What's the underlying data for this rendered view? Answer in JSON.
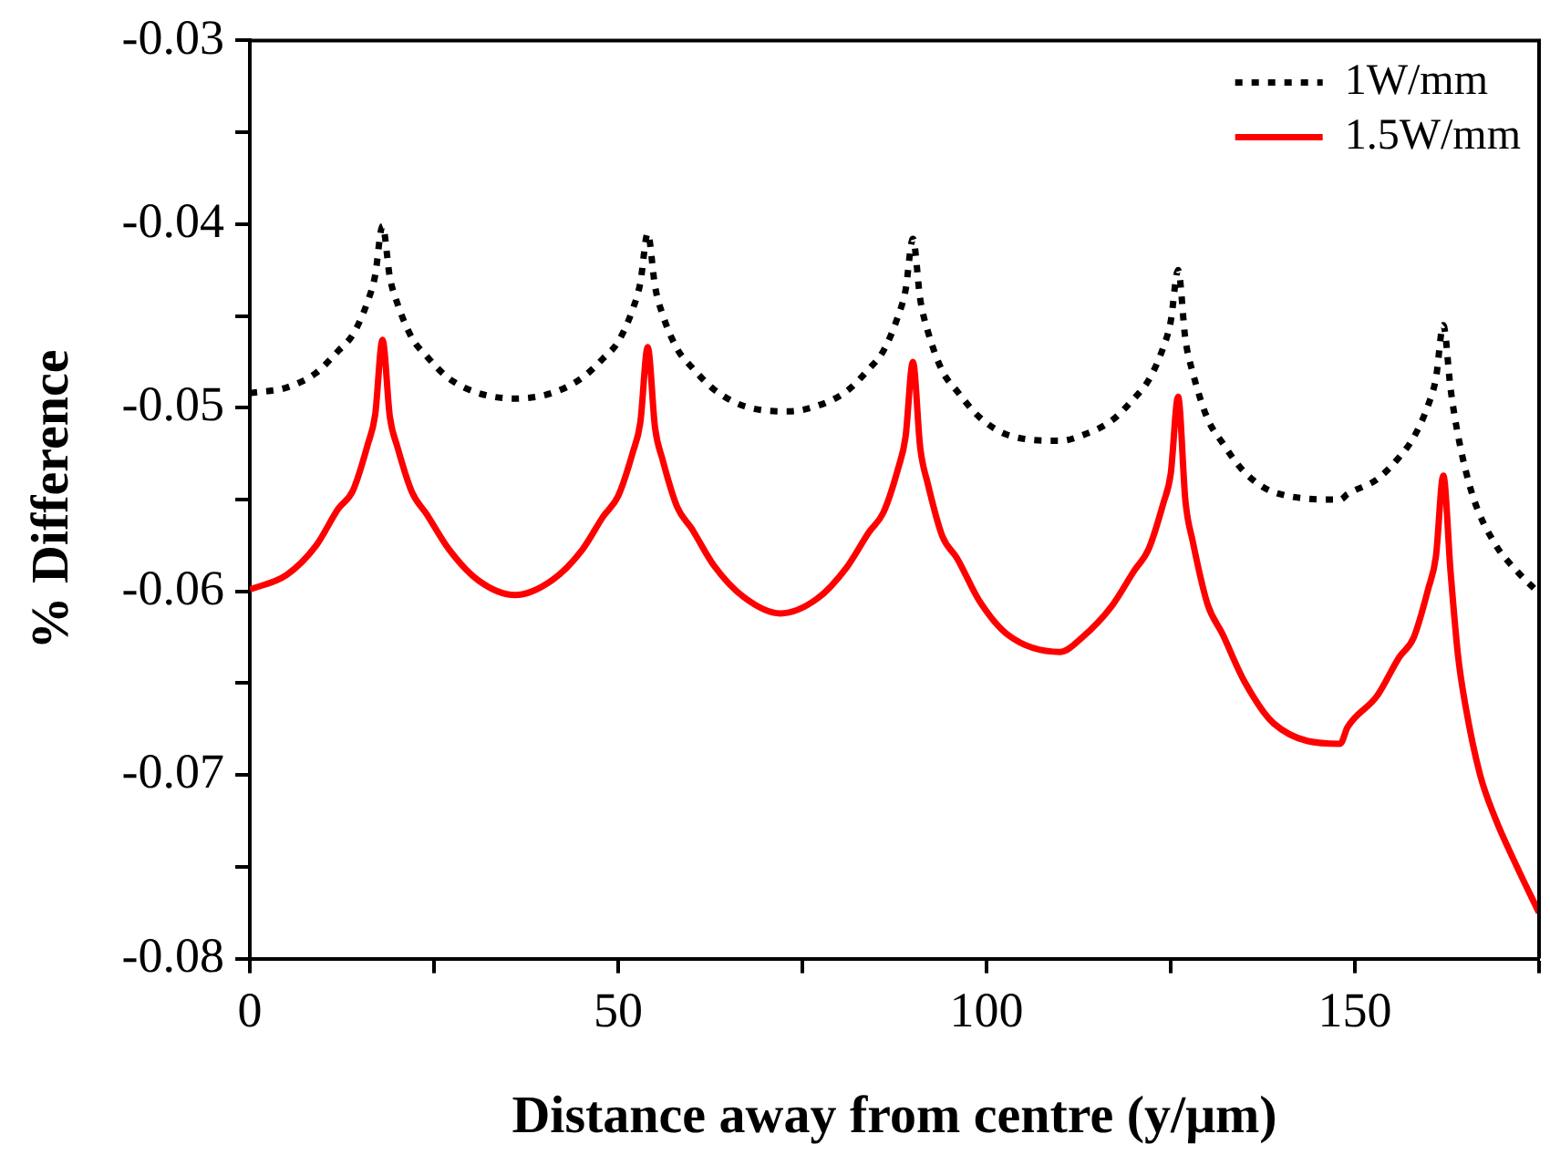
{
  "chart_data": {
    "type": "line",
    "xlabel": "Distance away from centre (y/μm)",
    "ylabel": "% Difference",
    "xlim": [
      0,
      175
    ],
    "ylim": [
      -0.08,
      -0.03
    ],
    "xticks": [
      0,
      {
        "value": 25,
        "label": null
      },
      50,
      {
        "value": 75,
        "label": null
      },
      100,
      {
        "value": 125,
        "label": null
      },
      150,
      {
        "value": 175,
        "label": null
      }
    ],
    "yticks": [
      -0.08,
      {
        "value": -0.075,
        "label": null
      },
      -0.07,
      {
        "value": -0.065,
        "label": null
      },
      -0.06,
      {
        "value": -0.055,
        "label": null
      },
      -0.05,
      {
        "value": -0.045,
        "label": null
      },
      -0.04,
      {
        "value": -0.035,
        "label": null
      },
      -0.03
    ],
    "grid": false,
    "legend": "top right",
    "marker": "none",
    "series": [
      {
        "name": "1W/mm",
        "color": "#000000",
        "line_style": "dotted",
        "x": [
          0,
          5,
          9,
          12,
          14,
          16,
          17,
          18,
          19,
          20,
          22,
          24,
          27,
          31,
          36,
          41,
          45,
          48,
          50,
          52,
          53,
          54,
          55,
          56,
          58,
          60,
          63,
          67,
          73,
          77,
          81,
          84,
          86,
          88,
          89,
          90,
          91,
          92,
          94,
          96,
          99,
          103,
          110,
          113,
          117,
          120,
          122,
          124,
          125,
          126,
          127,
          128,
          130,
          132,
          135,
          139,
          148,
          149,
          153,
          156,
          158,
          160,
          161,
          162,
          163,
          164,
          166,
          169,
          172,
          175
        ],
        "values": [
          -0.0492,
          -0.0489,
          -0.0481,
          -0.0469,
          -0.046,
          -0.0442,
          -0.0428,
          -0.0401,
          -0.0429,
          -0.0443,
          -0.0462,
          -0.0472,
          -0.0484,
          -0.0492,
          -0.0495,
          -0.0492,
          -0.0484,
          -0.0473,
          -0.0464,
          -0.0446,
          -0.0432,
          -0.0405,
          -0.0434,
          -0.0449,
          -0.0468,
          -0.0478,
          -0.049,
          -0.0499,
          -0.0502,
          -0.0499,
          -0.0491,
          -0.0479,
          -0.0469,
          -0.045,
          -0.0436,
          -0.0408,
          -0.0441,
          -0.0458,
          -0.048,
          -0.0491,
          -0.0505,
          -0.0515,
          -0.0518,
          -0.0515,
          -0.0507,
          -0.0495,
          -0.0485,
          -0.0467,
          -0.0453,
          -0.0425,
          -0.0463,
          -0.0481,
          -0.0506,
          -0.0519,
          -0.0535,
          -0.0546,
          -0.055,
          -0.0547,
          -0.0539,
          -0.0527,
          -0.0516,
          -0.0498,
          -0.0484,
          -0.0455,
          -0.049,
          -0.0515,
          -0.0548,
          -0.0574,
          -0.0589,
          -0.0601
        ]
      },
      {
        "name": "1.5W/mm",
        "color": "#ff0000",
        "line_style": "solid",
        "x": [
          0,
          5,
          9,
          12,
          14,
          16,
          17,
          18,
          19,
          20,
          22,
          24,
          27,
          31,
          36,
          41,
          45,
          48,
          50,
          52,
          53,
          54,
          55,
          56,
          58,
          60,
          63,
          67,
          72,
          77,
          81,
          84,
          86,
          88,
          89,
          90,
          91,
          92,
          94,
          96,
          99,
          103,
          110,
          113,
          117,
          120,
          122,
          124,
          125,
          126,
          127,
          128,
          130,
          132,
          135,
          139,
          148,
          149,
          153,
          156,
          158,
          160,
          161,
          162,
          163,
          164,
          165,
          167,
          169,
          172,
          175
        ],
        "values": [
          -0.0599,
          -0.0591,
          -0.0575,
          -0.0555,
          -0.0545,
          -0.052,
          -0.0504,
          -0.0463,
          -0.0505,
          -0.0521,
          -0.0546,
          -0.0558,
          -0.0577,
          -0.0594,
          -0.0602,
          -0.0594,
          -0.0578,
          -0.0559,
          -0.0548,
          -0.0524,
          -0.0508,
          -0.0467,
          -0.0511,
          -0.0528,
          -0.0554,
          -0.0566,
          -0.0586,
          -0.0603,
          -0.0612,
          -0.0604,
          -0.0587,
          -0.0568,
          -0.0557,
          -0.0533,
          -0.0516,
          -0.0475,
          -0.0522,
          -0.0541,
          -0.057,
          -0.0582,
          -0.0605,
          -0.0624,
          -0.0633,
          -0.0625,
          -0.0608,
          -0.0589,
          -0.0577,
          -0.0552,
          -0.0536,
          -0.0494,
          -0.0551,
          -0.0573,
          -0.0607,
          -0.0623,
          -0.0649,
          -0.0672,
          -0.0683,
          -0.0674,
          -0.0657,
          -0.0636,
          -0.0625,
          -0.0598,
          -0.0581,
          -0.0537,
          -0.059,
          -0.0635,
          -0.0662,
          -0.07,
          -0.0723,
          -0.075,
          -0.0775
        ]
      }
    ]
  }
}
